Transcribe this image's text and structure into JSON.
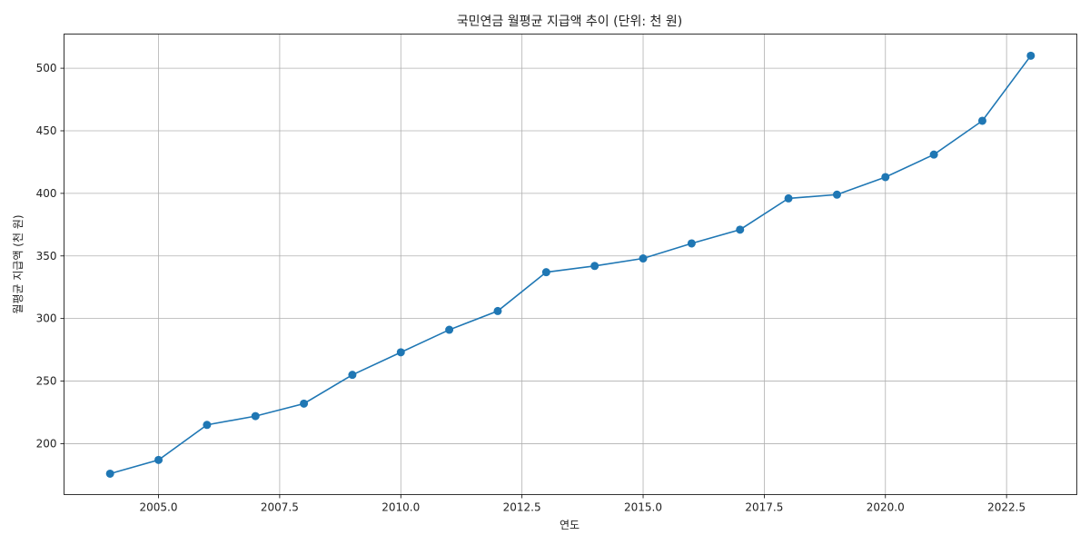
{
  "chart_data": {
    "type": "line",
    "title": "국민연금 월평균 지급액 추이 (단위: 천 원)",
    "xlabel": "연도",
    "ylabel": "월평균 지급액 (천 원)",
    "xlim": [
      2003.05,
      2023.95
    ],
    "ylim": [
      159.3,
      527.3
    ],
    "grid": true,
    "marker": "circle",
    "color": "#1f77b4",
    "x_ticks": [
      2005.0,
      2007.5,
      2010.0,
      2012.5,
      2015.0,
      2017.5,
      2020.0,
      2022.5
    ],
    "x_tick_labels": [
      "2005.0",
      "2007.5",
      "2010.0",
      "2012.5",
      "2015.0",
      "2017.5",
      "2020.0",
      "2022.5"
    ],
    "y_ticks": [
      200,
      250,
      300,
      350,
      400,
      450,
      500
    ],
    "y_tick_labels": [
      "200",
      "250",
      "300",
      "350",
      "400",
      "450",
      "500"
    ],
    "series": [
      {
        "x": [
          2004,
          2005,
          2006,
          2007,
          2008,
          2009,
          2010,
          2011,
          2012,
          2013,
          2014,
          2015,
          2016,
          2017,
          2018,
          2019,
          2020,
          2021,
          2022,
          2023
        ],
        "values": [
          176,
          187,
          215,
          222,
          232,
          255,
          273,
          291,
          306,
          337,
          342,
          348,
          360,
          371,
          396,
          399,
          413,
          431,
          458,
          510
        ]
      }
    ]
  }
}
